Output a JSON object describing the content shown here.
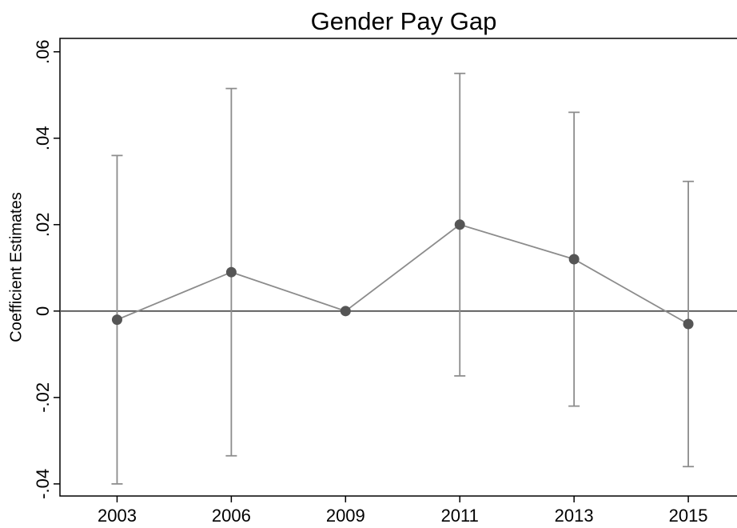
{
  "chart_data": {
    "type": "errorbar",
    "title": "Gender Pay Gap",
    "y_label": "Coefficient Estimates",
    "categories": [
      "2003",
      "2006",
      "2009",
      "2011",
      "2013",
      "2015"
    ],
    "values": [
      -0.002,
      0.009,
      0,
      0.02,
      0.012,
      -0.003
    ],
    "errors": [
      0.038,
      0.0425,
      null,
      0.035,
      0.034,
      0.033
    ],
    "color": "#555555",
    "line_color": "#8c8c8c",
    "ylim": [
      -0.0428,
      0.0631
    ],
    "yticks": [
      {
        "value": -0.04,
        "label": "-.04"
      },
      {
        "value": -0.02,
        "label": "-.02"
      },
      0,
      {
        "value": 0.02,
        "label": ".02"
      },
      {
        "value": 0.04,
        "label": ".04"
      },
      {
        "value": 0.06,
        "label": ".06"
      }
    ],
    "yline": 0
  }
}
